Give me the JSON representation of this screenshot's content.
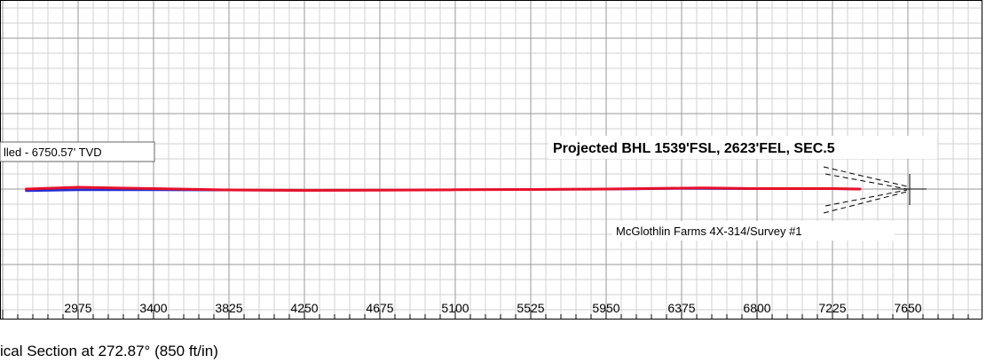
{
  "chart_data": {
    "type": "line",
    "xlabel": "ical Section at 272.87° (850 ft/in)",
    "x_ticks": [
      "2975",
      "3400",
      "3825",
      "4250",
      "4675",
      "5100",
      "5525",
      "5950",
      "6375",
      "6800",
      "7225",
      "7650"
    ],
    "xlim": [
      2682,
      7672
    ],
    "grid": true,
    "annotations": {
      "tvd_label": "lled - 6750.57' TVD",
      "bhl_label": "Projected BHL 1539'FSL, 2623'FEL, SEC.5",
      "plan_label": "McGlothlin Farms 4X-314/Survey #1"
    },
    "series": [
      {
        "color": "#e8102a",
        "x": [
          2682,
          2975,
          3400,
          3825,
          4250,
          4675,
          5100,
          5525,
          5950,
          6375,
          6500,
          6800,
          7225,
          7380
        ],
        "y": [
          0.0,
          2.0,
          0.5,
          -1.0,
          -1.5,
          -1.2,
          -0.8,
          -0.5,
          0.0,
          1.0,
          1.2,
          0.5,
          0.5,
          0.0
        ]
      },
      {
        "color": "#1f2bd6",
        "x": [
          2682,
          2975,
          3400,
          3825,
          4250,
          4675,
          5100,
          5525,
          5950,
          6375,
          6800,
          7225,
          7380
        ],
        "y": [
          -2.0,
          -1.0,
          -1.0,
          -1.2,
          -1.5,
          -1.2,
          -0.8,
          -0.5,
          -0.2,
          0.5,
          0.3,
          0.3,
          0.0
        ]
      }
    ],
    "target_marker": {
      "x": 7380,
      "y": 0.0
    }
  }
}
